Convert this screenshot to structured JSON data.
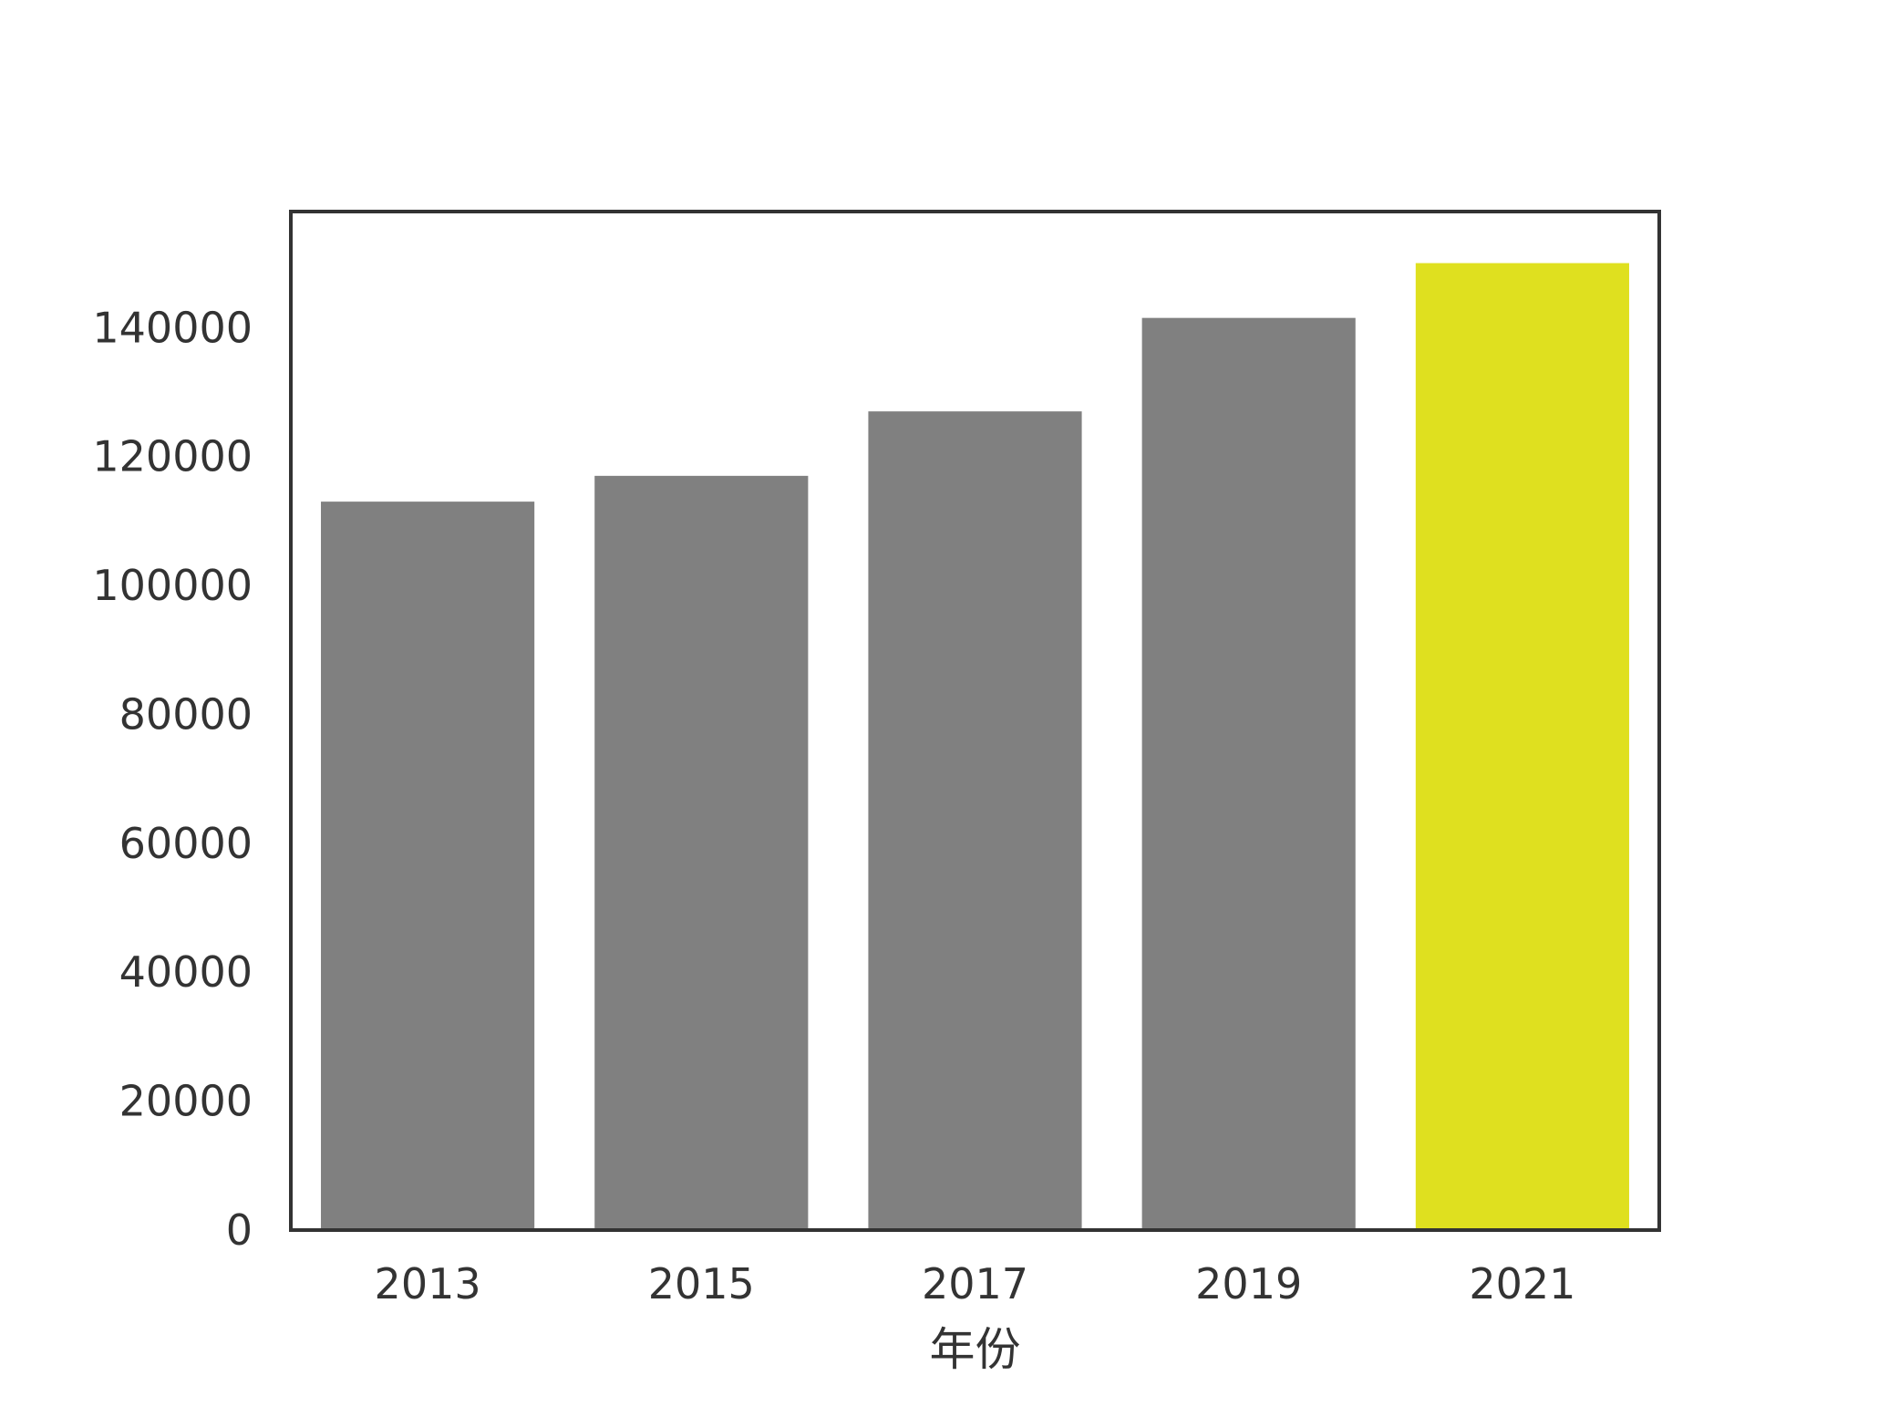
{
  "chart_data": {
    "type": "bar",
    "title": "",
    "xlabel": "年份",
    "ylabel": "",
    "categories": [
      "2013",
      "2015",
      "2017",
      "2019",
      "2021"
    ],
    "values": [
      113000,
      117000,
      127000,
      141500,
      150000
    ],
    "bar_colors": [
      "#808080",
      "#808080",
      "#808080",
      "#808080",
      "#dfe01f"
    ],
    "highlight_index": 4,
    "ylim": [
      0,
      158000
    ],
    "yticks": [
      0,
      20000,
      40000,
      60000,
      80000,
      100000,
      120000,
      140000
    ],
    "ytick_labels": [
      "0",
      "20000",
      "40000",
      "60000",
      "80000",
      "100000",
      "120000",
      "140000"
    ],
    "grid": false,
    "legend": "none"
  }
}
